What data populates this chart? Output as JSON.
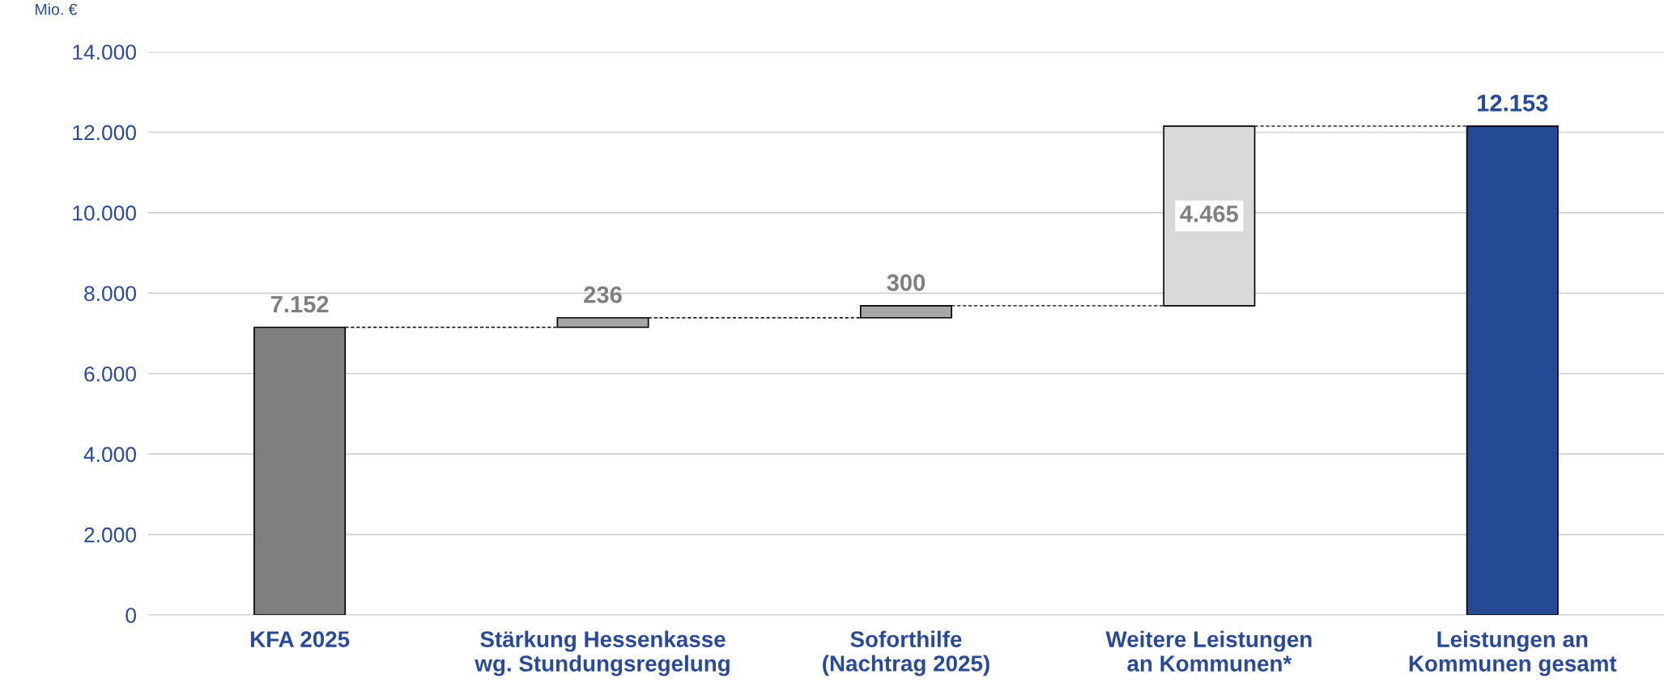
{
  "chart_data": {
    "type": "bar",
    "ylabel": "Mio. €",
    "categories": [
      "KFA 2025",
      "Stärkung Hessenkasse\nwg. Stundungsregelung",
      "Soforthilfe\n(Nachtrag 2025)",
      "Weitere Leistungen\nan Kommunen*",
      "Leistungen an\nKommunen gesamt"
    ],
    "values": [
      7152,
      236,
      300,
      4465,
      12153
    ],
    "base": [
      0,
      7152,
      7388,
      7688,
      0
    ],
    "colors": [
      "#7f7f7f",
      "#a6a6a6",
      "#a6a6a6",
      "#d9d9d9",
      "#244a94"
    ],
    "value_labels": [
      "7.152",
      "236",
      "300",
      "4.465",
      "12.153"
    ],
    "ylim": [
      0,
      14000
    ],
    "yticks": [
      {
        "value": 0,
        "label": "0"
      },
      {
        "value": 2000,
        "label": "2.000"
      },
      {
        "value": 4000,
        "label": "4.000"
      },
      {
        "value": 6000,
        "label": "6.000"
      },
      {
        "value": 8000,
        "label": "8.000"
      },
      {
        "value": 10000,
        "label": "10.000"
      },
      {
        "value": 12000,
        "label": "12.000"
      },
      {
        "value": 14000,
        "label": "14.000"
      }
    ],
    "grid": "y",
    "legend": false
  }
}
